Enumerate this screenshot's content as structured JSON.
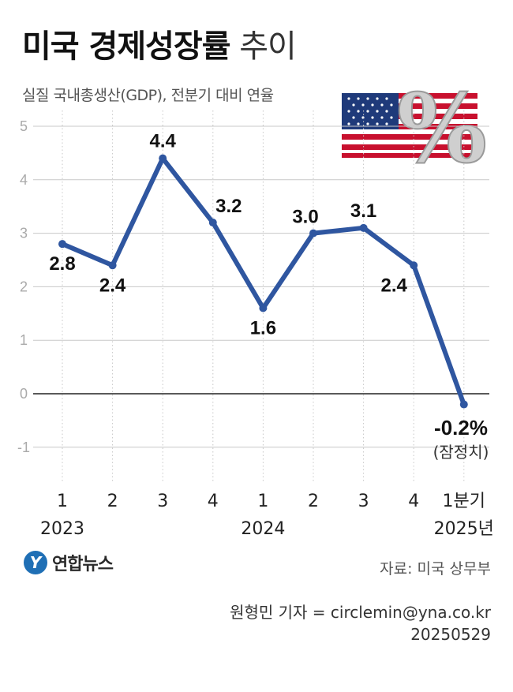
{
  "title_bold": "미국 경제성장률",
  "title_light": "추이",
  "subtitle": "실질 국내총생산(GDP), 전분기 대비 연율",
  "chart_data": {
    "type": "line",
    "categories": [
      "1",
      "2",
      "3",
      "4",
      "1",
      "2",
      "3",
      "4",
      "1분기"
    ],
    "year_labels": [
      {
        "text": "2023",
        "index": 0
      },
      {
        "text": "2024",
        "index": 4
      },
      {
        "text": "2025년",
        "index": 8
      }
    ],
    "values": [
      2.8,
      2.4,
      4.4,
      3.2,
      1.6,
      3.0,
      3.1,
      2.4,
      -0.2
    ],
    "value_labels": [
      "2.8",
      "2.4",
      "4.4",
      "3.2",
      "1.6",
      "3.0",
      "3.1",
      "2.4",
      "-0.2%"
    ],
    "last_note": "(잠정치)",
    "yticks": [
      "5",
      "4",
      "3",
      "2",
      "1",
      "0",
      "-1"
    ],
    "ylim": [
      -1.5,
      5
    ],
    "grid": true,
    "line_color": "#2f56a0"
  },
  "logo_text": "연합뉴스",
  "source": "자료: 미국 상무부",
  "credit_line1": "원형민 기자 = circlemin@yna.co.kr",
  "credit_line2": "20250529"
}
